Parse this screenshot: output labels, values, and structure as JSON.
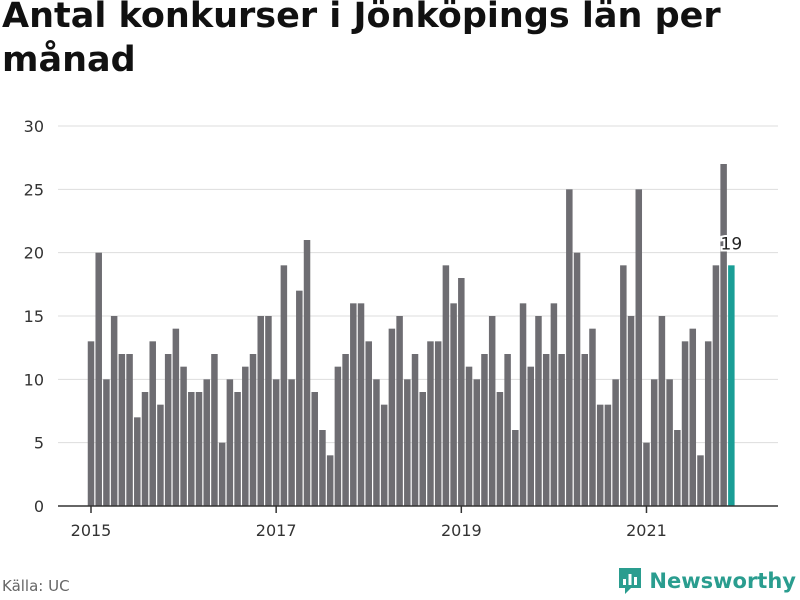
{
  "title": "Antal konkurser i Jönköpings län per månad",
  "source": "Källa: UC",
  "brand": {
    "name": "Newsworthy",
    "icon": "newsworthy-logo-icon"
  },
  "colors": {
    "bar": "#6e6d72",
    "highlight": "#1a9e96",
    "grid": "#dddddd",
    "axis": "#333333",
    "brand": "#2a9d8f"
  },
  "chart_data": {
    "type": "bar",
    "title": "Antal konkurser i Jönköpings län per månad",
    "xlabel": "",
    "ylabel": "",
    "ylim": [
      0,
      30
    ],
    "yticks": [
      0,
      5,
      10,
      15,
      20,
      25,
      30
    ],
    "x_start": "2015-01",
    "xticks": [
      {
        "label": "2015",
        "month": "2015-01"
      },
      {
        "label": "2017",
        "month": "2017-01"
      },
      {
        "label": "2019",
        "month": "2019-01"
      },
      {
        "label": "2021",
        "month": "2021-01"
      }
    ],
    "values": [
      13,
      20,
      10,
      15,
      12,
      12,
      7,
      9,
      13,
      8,
      12,
      14,
      11,
      9,
      9,
      10,
      12,
      5,
      10,
      9,
      11,
      12,
      15,
      15,
      10,
      19,
      10,
      17,
      21,
      9,
      6,
      4,
      11,
      12,
      16,
      16,
      13,
      10,
      8,
      14,
      15,
      10,
      12,
      9,
      13,
      13,
      19,
      16,
      18,
      11,
      10,
      12,
      15,
      9,
      12,
      6,
      16,
      11,
      15,
      12,
      16,
      12,
      25,
      20,
      12,
      14,
      8,
      8,
      10,
      19,
      15,
      25,
      5,
      10,
      15,
      10,
      6,
      13,
      14,
      4,
      13,
      19,
      27,
      19
    ],
    "highlight_last": true,
    "last_value_label": "19",
    "grid": true
  }
}
